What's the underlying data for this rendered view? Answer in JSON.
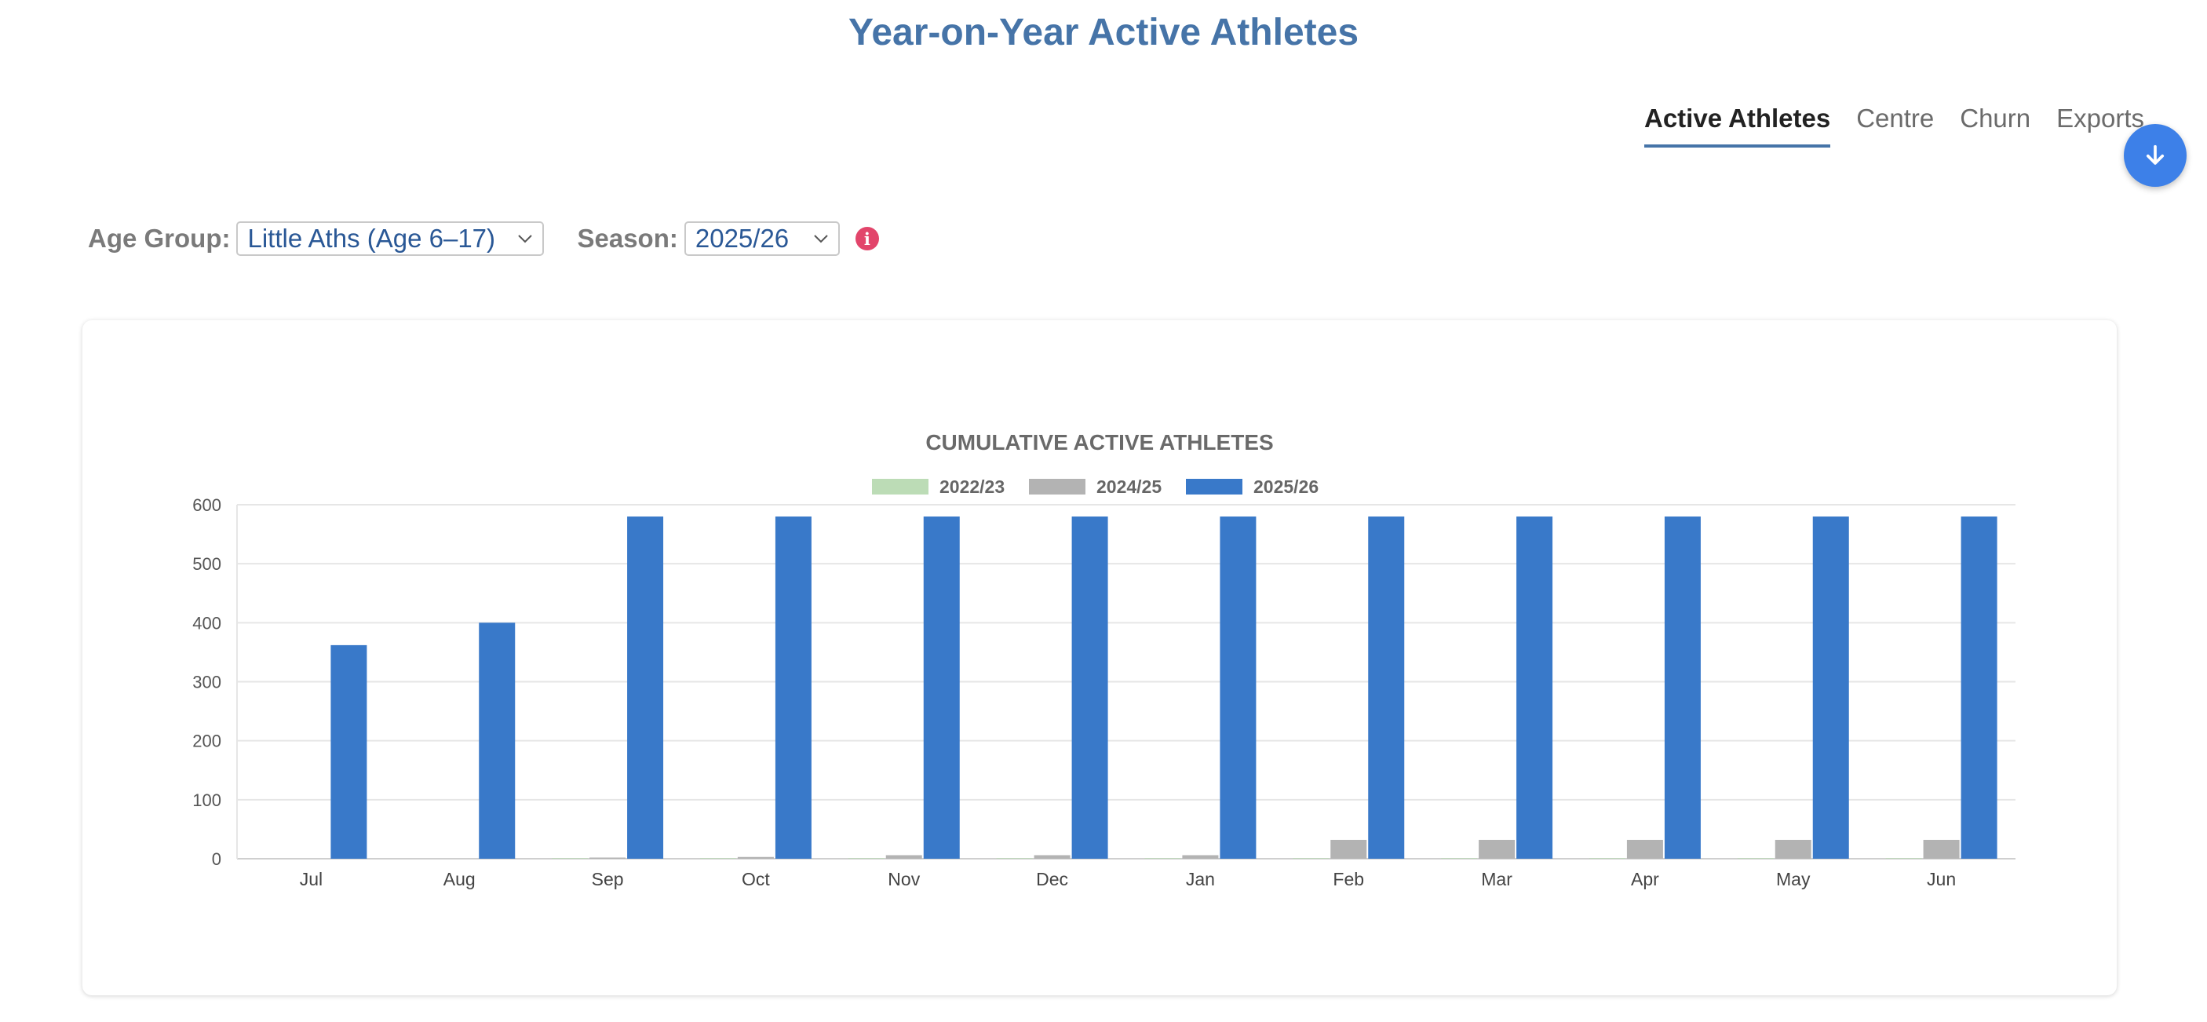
{
  "page": {
    "title": "Year-on-Year Active Athletes"
  },
  "nav": {
    "tabs": [
      {
        "label": "Active Athletes",
        "active": true
      },
      {
        "label": "Centre",
        "active": false
      },
      {
        "label": "Churn",
        "active": false
      },
      {
        "label": "Exports",
        "active": false
      }
    ],
    "download_icon": "arrow-down-icon"
  },
  "filters": {
    "age_group": {
      "label": "Age Group:",
      "value": "Little Aths (Age 6–17)"
    },
    "season": {
      "label": "Season:",
      "value": "2025/26"
    },
    "info_icon": "info-icon",
    "info_glyph": "i"
  },
  "colors": {
    "title": "#4674a8",
    "series_2022_23": "#bcdcb6",
    "series_2024_25": "#b3b3b3",
    "series_2025_26": "#3979c9",
    "info": "#e2456b",
    "fab": "#3d80e8"
  },
  "chart_data": {
    "type": "bar",
    "title": "CUMULATIVE ACTIVE ATHLETES",
    "categories": [
      "Jul",
      "Aug",
      "Sep",
      "Oct",
      "Nov",
      "Dec",
      "Jan",
      "Feb",
      "Mar",
      "Apr",
      "May",
      "Jun"
    ],
    "series": [
      {
        "name": "2022/23",
        "color": "#bcdcb6",
        "values": [
          0,
          0,
          1,
          1,
          1,
          1,
          1,
          1,
          1,
          1,
          1,
          1
        ]
      },
      {
        "name": "2024/25",
        "color": "#b3b3b3",
        "values": [
          0,
          0,
          2,
          3,
          6,
          6,
          6,
          32,
          32,
          32,
          32,
          32
        ]
      },
      {
        "name": "2025/26",
        "color": "#3979c9",
        "values": [
          362,
          400,
          580,
          580,
          580,
          580,
          580,
          580,
          580,
          580,
          580,
          580
        ]
      }
    ],
    "ylim": [
      0,
      600
    ],
    "yticks": [
      0,
      100,
      200,
      300,
      400,
      500,
      600
    ],
    "grid": true,
    "legend_position": "top"
  }
}
